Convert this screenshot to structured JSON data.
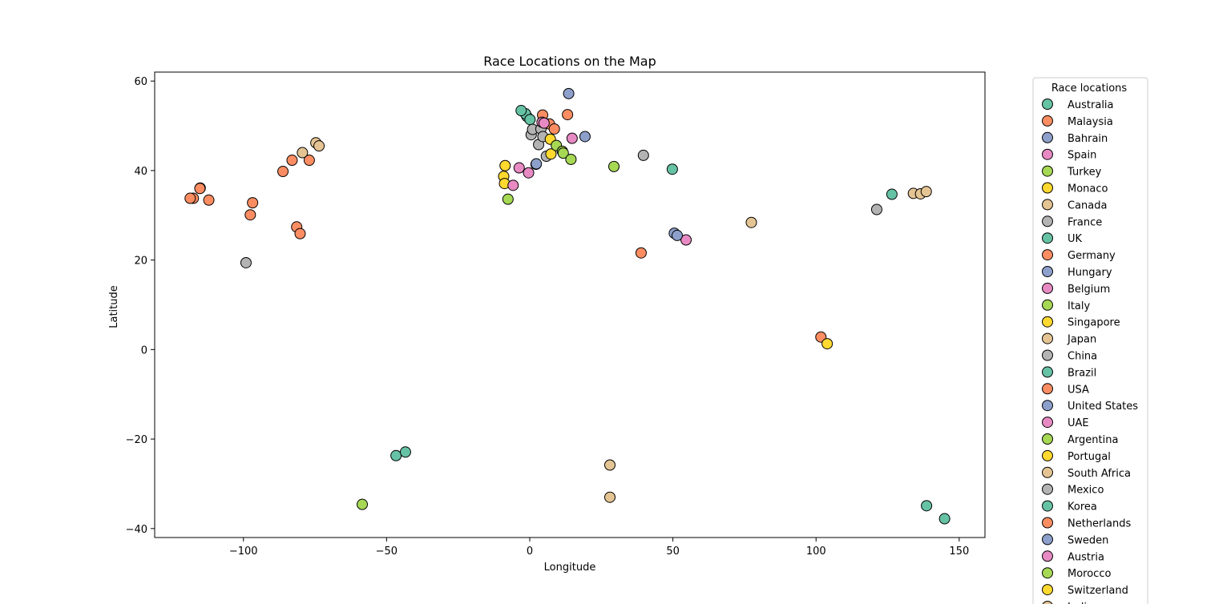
{
  "chart_data": {
    "type": "scatter",
    "title": "Race Locations on the Map",
    "xlabel": "Longitude",
    "ylabel": "Latitude",
    "xlim": [
      -131,
      159
    ],
    "ylim": [
      -42,
      62
    ],
    "xticks": [
      -100,
      -50,
      0,
      50,
      100,
      150
    ],
    "yticks": [
      -40,
      -20,
      0,
      20,
      40,
      60
    ],
    "xtick_labels": [
      "−100",
      "−50",
      "0",
      "50",
      "100",
      "150"
    ],
    "ytick_labels": [
      "−40",
      "−20",
      "0",
      "20",
      "40",
      "60"
    ],
    "grid": false,
    "legend": {
      "title": "Race locations",
      "placement": "outside-right",
      "entries": [
        "Australia",
        "Malaysia",
        "Bahrain",
        "Spain",
        "Turkey",
        "Monaco",
        "Canada",
        "France",
        "UK",
        "Germany",
        "Hungary",
        "Belgium",
        "Italy",
        "Singapore",
        "Japan",
        "China",
        "Brazil",
        "USA",
        "United States",
        "UAE",
        "Argentina",
        "Portugal",
        "South Africa",
        "Mexico",
        "Korea",
        "Netherlands",
        "Sweden",
        "Austria",
        "Morocco",
        "Switzerland",
        "India"
      ],
      "visible_labels": [
        "Australia",
        "Malaysia",
        "Bahrain",
        "Spain",
        "Turkey",
        "Monaco",
        "Canada",
        "France",
        "UK",
        "Germany",
        "Hungary",
        "Belgium",
        "Italy",
        "Singapore",
        "Japan",
        "China",
        "Brazil",
        "USA",
        "United States",
        "UAE",
        "Argentina",
        "Portugal",
        "South Africa",
        "Mexico",
        "Korea",
        "Netherlands",
        "Sweden",
        "Austria",
        "Morocco",
        "Switzerland",
        "India"
      ]
    },
    "palette": [
      "#66c2a5",
      "#fc8d62",
      "#8da0cb",
      "#e78ac3",
      "#a6d854",
      "#ffd92f",
      "#e5c494",
      "#b3b3b3"
    ],
    "points": [
      {
        "x": 144.9,
        "y": -37.8,
        "c": 0
      },
      {
        "x": 138.6,
        "y": -34.9,
        "c": 0
      },
      {
        "x": 101.7,
        "y": 2.8,
        "c": 1
      },
      {
        "x": 50.5,
        "y": 26.0,
        "c": 2
      },
      {
        "x": 54.6,
        "y": 24.5,
        "c": 3
      },
      {
        "x": 29.4,
        "y": 40.9,
        "c": 4
      },
      {
        "x": 103.9,
        "y": 1.3,
        "c": 5
      },
      {
        "x": 77.4,
        "y": 28.4,
        "c": 6
      },
      {
        "x": 28.0,
        "y": -25.8,
        "c": 6
      },
      {
        "x": 28.0,
        "y": -33.0,
        "c": 6
      },
      {
        "x": 134.0,
        "y": 34.9,
        "c": 6
      },
      {
        "x": 136.5,
        "y": 34.8,
        "c": 6
      },
      {
        "x": 138.5,
        "y": 35.3,
        "c": 6
      },
      {
        "x": 121.2,
        "y": 31.3,
        "c": 7
      },
      {
        "x": 39.7,
        "y": 43.4,
        "c": 7
      },
      {
        "x": 126.5,
        "y": 34.7,
        "c": 0
      },
      {
        "x": 49.8,
        "y": 40.3,
        "c": 0
      },
      {
        "x": 38.9,
        "y": 21.6,
        "c": 1
      },
      {
        "x": 51.5,
        "y": 25.5,
        "c": 2
      },
      {
        "x": -46.7,
        "y": -23.7,
        "c": 0
      },
      {
        "x": -43.4,
        "y": -22.9,
        "c": 0
      },
      {
        "x": -58.5,
        "y": -34.6,
        "c": 4
      },
      {
        "x": -99.1,
        "y": 19.4,
        "c": 7
      },
      {
        "x": -117.5,
        "y": 33.8,
        "c": 1
      },
      {
        "x": -118.6,
        "y": 33.8,
        "c": 1
      },
      {
        "x": -115.1,
        "y": 36.1,
        "c": 1
      },
      {
        "x": -115.2,
        "y": 36.0,
        "c": 1
      },
      {
        "x": -112.1,
        "y": 33.4,
        "c": 1
      },
      {
        "x": -96.8,
        "y": 32.8,
        "c": 1
      },
      {
        "x": -97.6,
        "y": 30.1,
        "c": 1
      },
      {
        "x": -86.2,
        "y": 39.8,
        "c": 1
      },
      {
        "x": -83.0,
        "y": 42.3,
        "c": 1
      },
      {
        "x": -81.4,
        "y": 27.4,
        "c": 1
      },
      {
        "x": -80.2,
        "y": 25.9,
        "c": 1
      },
      {
        "x": -77.0,
        "y": 42.3,
        "c": 1
      },
      {
        "x": -79.4,
        "y": 44.0,
        "c": 6
      },
      {
        "x": -74.7,
        "y": 46.2,
        "c": 6
      },
      {
        "x": -73.6,
        "y": 45.5,
        "c": 6
      },
      {
        "x": -9.1,
        "y": 38.7,
        "c": 5
      },
      {
        "x": -8.6,
        "y": 41.1,
        "c": 5
      },
      {
        "x": -8.8,
        "y": 37.1,
        "c": 5
      },
      {
        "x": -7.6,
        "y": 33.6,
        "c": 4
      },
      {
        "x": -3.7,
        "y": 40.6,
        "c": 3
      },
      {
        "x": -0.4,
        "y": 39.5,
        "c": 3
      },
      {
        "x": 2.2,
        "y": 41.4,
        "c": 3
      },
      {
        "x": -5.8,
        "y": 36.7,
        "c": 3
      },
      {
        "x": 2.3,
        "y": 41.5,
        "c": 2
      },
      {
        "x": -1.0,
        "y": 52.1,
        "c": 0
      },
      {
        "x": -1.5,
        "y": 52.7,
        "c": 0
      },
      {
        "x": -3.0,
        "y": 53.4,
        "c": 0
      },
      {
        "x": 0.1,
        "y": 51.4,
        "c": 0
      },
      {
        "x": 0.5,
        "y": 48.0,
        "c": 7
      },
      {
        "x": 1.0,
        "y": 49.2,
        "c": 7
      },
      {
        "x": 3.1,
        "y": 45.8,
        "c": 7
      },
      {
        "x": 3.9,
        "y": 49.3,
        "c": 7
      },
      {
        "x": 5.8,
        "y": 43.2,
        "c": 7
      },
      {
        "x": 4.6,
        "y": 47.6,
        "c": 7
      },
      {
        "x": 4.5,
        "y": 52.4,
        "c": 1
      },
      {
        "x": 6.9,
        "y": 50.4,
        "c": 1
      },
      {
        "x": 8.6,
        "y": 49.3,
        "c": 1
      },
      {
        "x": 13.2,
        "y": 52.5,
        "c": 1
      },
      {
        "x": 4.3,
        "y": 50.8,
        "c": 3
      },
      {
        "x": 5.0,
        "y": 50.6,
        "c": 3
      },
      {
        "x": 14.8,
        "y": 47.2,
        "c": 3
      },
      {
        "x": 7.4,
        "y": 43.7,
        "c": 5
      },
      {
        "x": 7.2,
        "y": 47.0,
        "c": 5
      },
      {
        "x": 9.3,
        "y": 45.6,
        "c": 4
      },
      {
        "x": 11.4,
        "y": 44.3,
        "c": 4
      },
      {
        "x": 11.7,
        "y": 43.9,
        "c": 4
      },
      {
        "x": 14.4,
        "y": 42.5,
        "c": 4
      },
      {
        "x": 13.6,
        "y": 57.2,
        "c": 2
      },
      {
        "x": 19.3,
        "y": 47.6,
        "c": 2
      }
    ]
  }
}
